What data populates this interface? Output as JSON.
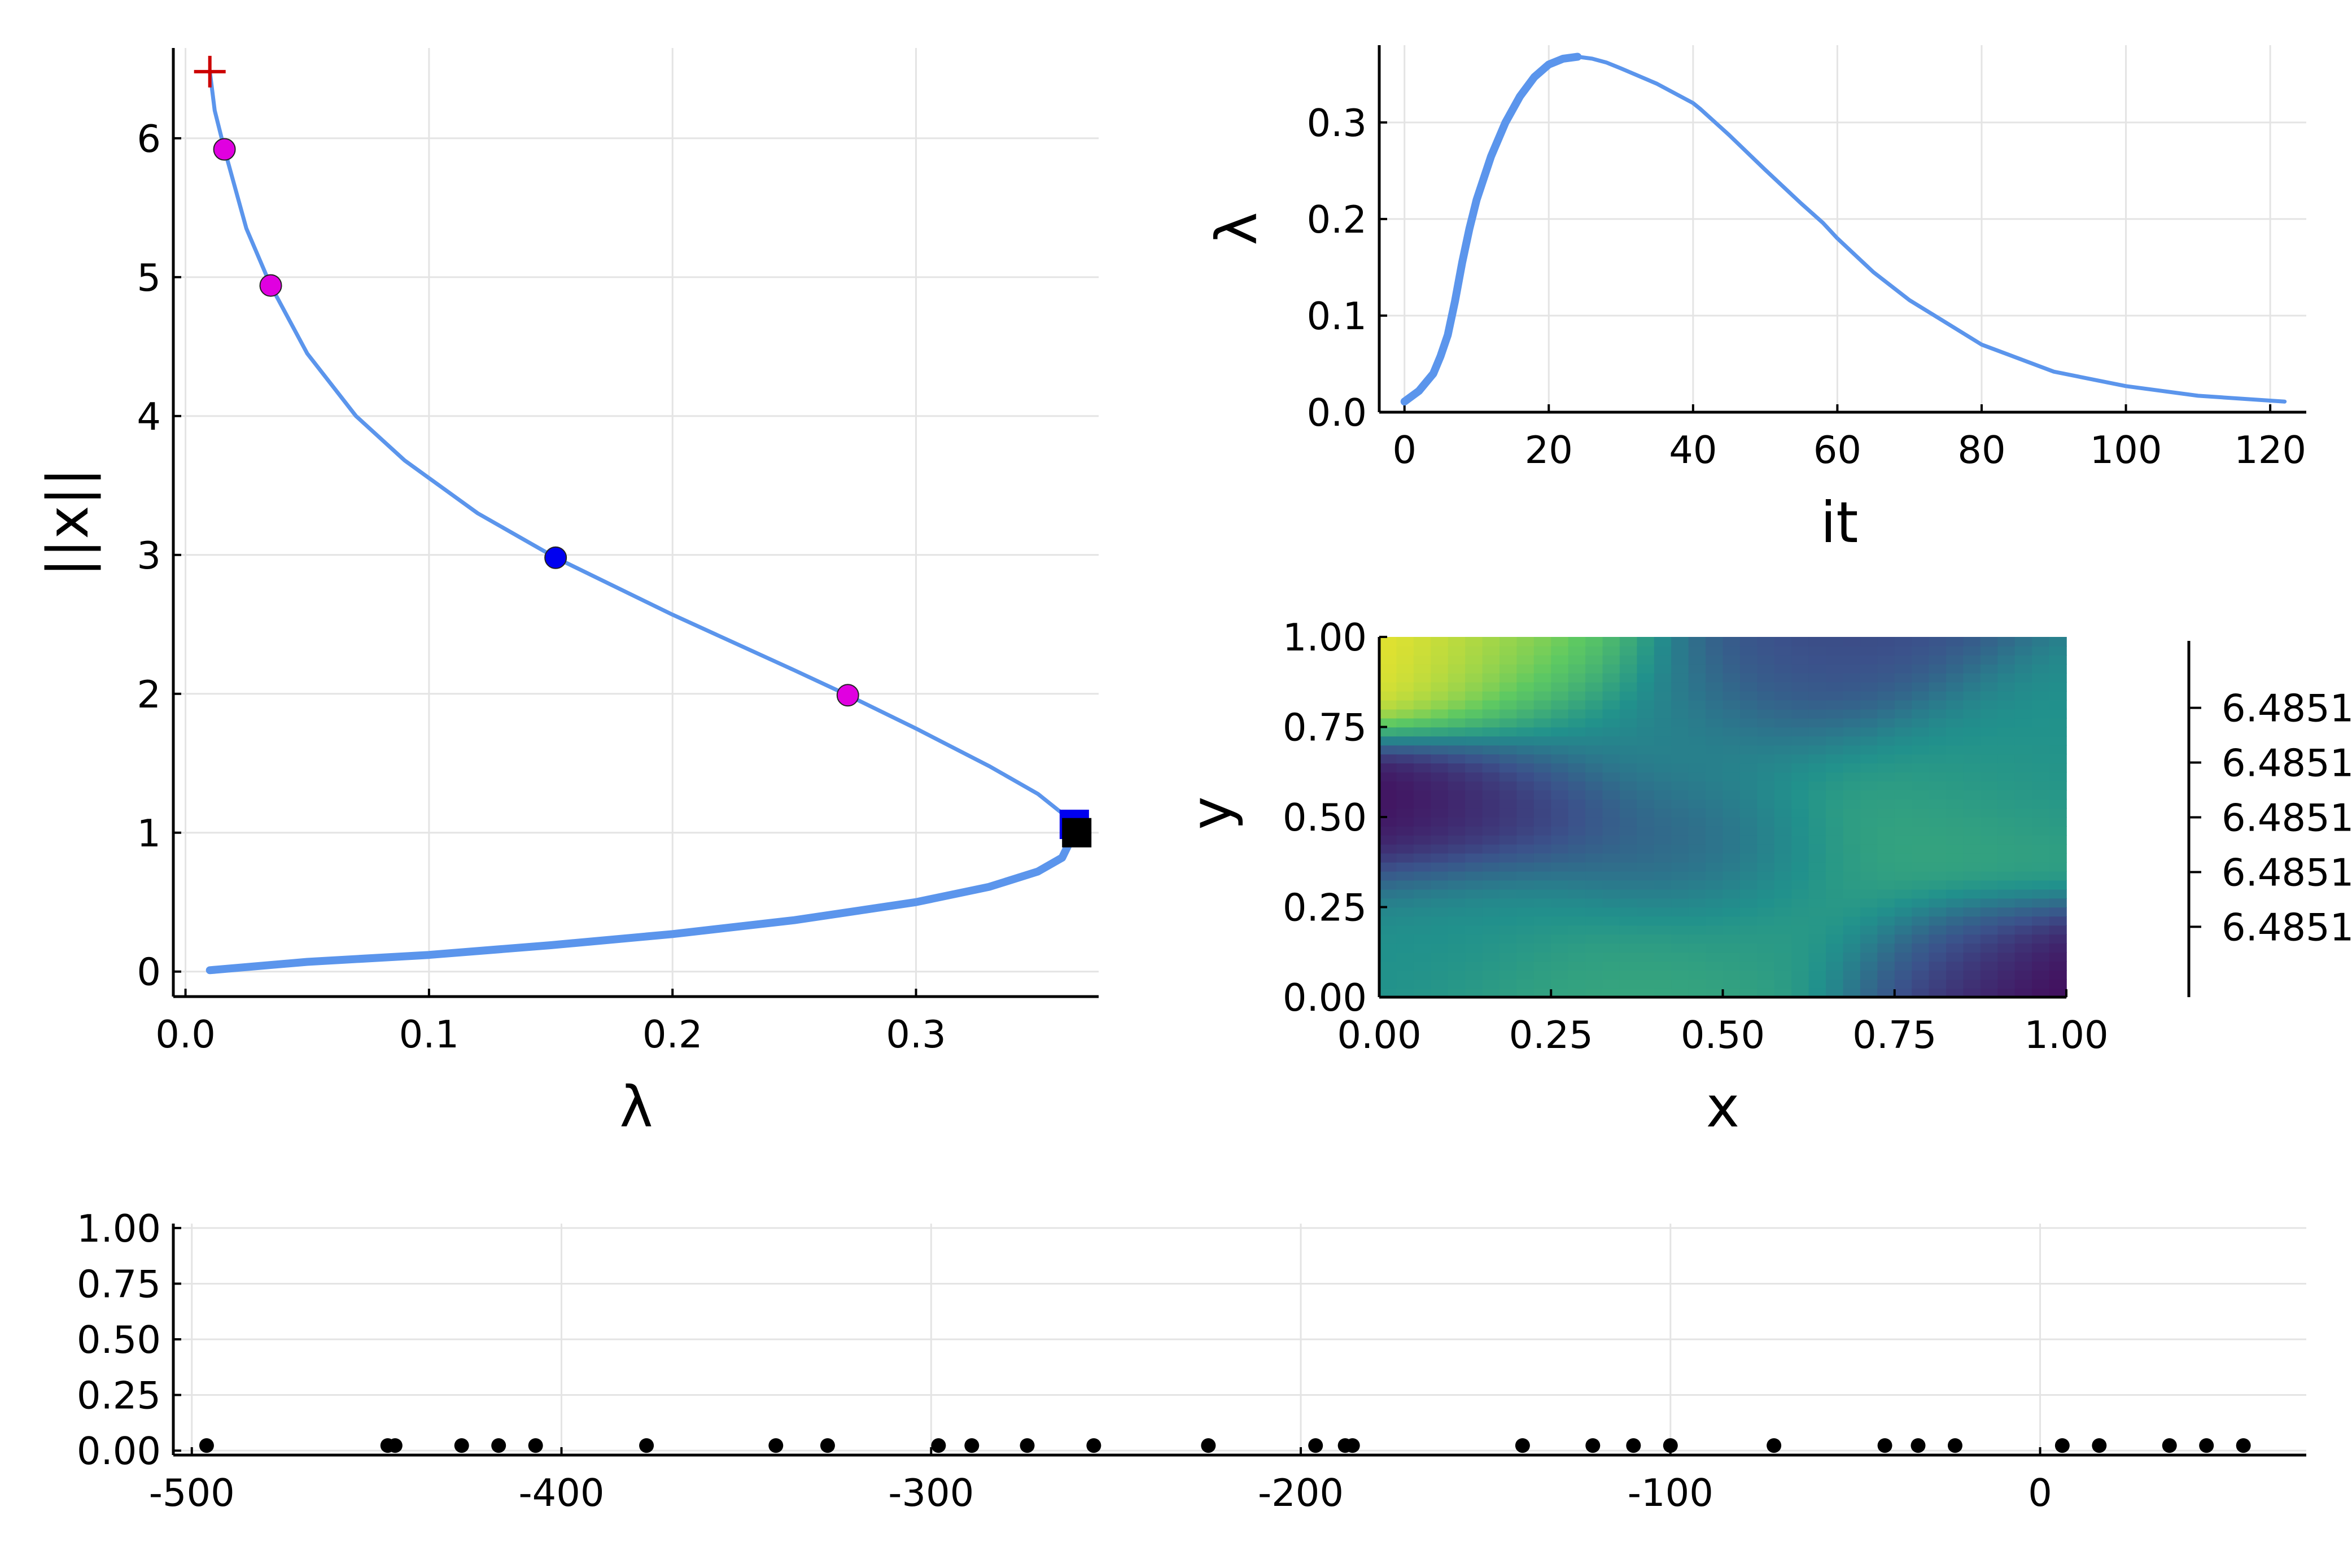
{
  "chart_data": [
    {
      "id": "branch",
      "type": "line",
      "xlabel": "λ",
      "ylabel": "||x||",
      "xlim": [
        -0.005,
        0.375
      ],
      "ylim": [
        -0.18,
        6.65
      ],
      "xticks": [
        0.0,
        0.1,
        0.2,
        0.3
      ],
      "xtick_labels": [
        "0.0",
        "0.1",
        "0.2",
        "0.3"
      ],
      "yticks": [
        0,
        1,
        2,
        3,
        4,
        5,
        6
      ],
      "ytick_labels": [
        "0",
        "1",
        "2",
        "3",
        "4",
        "5",
        "6"
      ],
      "grid": true,
      "colors": {
        "curve": "#5b95ec",
        "magenta": "#e000e0",
        "blue": "#0000f0",
        "black": "#000000",
        "red": "#cc0000"
      },
      "series": [
        {
          "style": "thick",
          "x": [
            0.01,
            0.05,
            0.1,
            0.15,
            0.2,
            0.25,
            0.3,
            0.33,
            0.35,
            0.36,
            0.365
          ],
          "y": [
            0.01,
            0.07,
            0.12,
            0.19,
            0.27,
            0.37,
            0.5,
            0.61,
            0.72,
            0.82,
            1.0
          ]
        },
        {
          "style": "thin",
          "x": [
            0.365,
            0.36,
            0.35,
            0.33,
            0.3,
            0.272,
            0.25,
            0.2,
            0.152,
            0.12,
            0.09,
            0.07,
            0.05,
            0.035,
            0.025,
            0.016,
            0.012,
            0.01
          ],
          "y": [
            1.0,
            1.14,
            1.28,
            1.48,
            1.75,
            1.99,
            2.17,
            2.57,
            2.98,
            3.3,
            3.68,
            4.0,
            4.45,
            4.94,
            5.35,
            5.92,
            6.2,
            6.48
          ]
        }
      ],
      "markers": [
        {
          "shape": "plus",
          "color": "red",
          "x": 0.01,
          "y": 6.48
        },
        {
          "shape": "circle",
          "color": "magenta",
          "x": 0.016,
          "y": 5.92
        },
        {
          "shape": "circle",
          "color": "magenta",
          "x": 0.035,
          "y": 4.94
        },
        {
          "shape": "circle",
          "color": "blue",
          "x": 0.152,
          "y": 2.98
        },
        {
          "shape": "circle",
          "color": "magenta",
          "x": 0.272,
          "y": 1.99
        },
        {
          "shape": "square",
          "color": "blue",
          "x": 0.365,
          "y": 1.06
        },
        {
          "shape": "square",
          "color": "black",
          "x": 0.366,
          "y": 1.0
        }
      ]
    },
    {
      "id": "lambda",
      "type": "line",
      "xlabel": "it",
      "ylabel": "λ",
      "xlim": [
        -3.5,
        125
      ],
      "ylim": [
        0.0,
        0.38
      ],
      "xticks": [
        0,
        20,
        40,
        60,
        80,
        100,
        120
      ],
      "xtick_labels": [
        "0",
        "20",
        "40",
        "60",
        "80",
        "100",
        "120"
      ],
      "yticks": [
        0.0,
        0.1,
        0.2,
        0.3
      ],
      "ytick_labels": [
        "0.0",
        "0.1",
        "0.2",
        "0.3"
      ],
      "grid": true,
      "colors": {
        "curve": "#5b95ec"
      },
      "series": [
        {
          "style": "thick",
          "x": [
            0,
            2,
            4,
            5,
            6,
            7,
            8,
            9,
            10,
            12,
            14,
            16,
            18,
            20,
            22,
            24
          ],
          "y": [
            0.011,
            0.022,
            0.04,
            0.058,
            0.08,
            0.115,
            0.155,
            0.19,
            0.22,
            0.265,
            0.3,
            0.327,
            0.347,
            0.36,
            0.366,
            0.368
          ]
        },
        {
          "style": "thin",
          "x": [
            24,
            26,
            28,
            30,
            35,
            40,
            41,
            45,
            50,
            55,
            58,
            60,
            65,
            70,
            80,
            90,
            100,
            110,
            122
          ],
          "y": [
            0.368,
            0.366,
            0.362,
            0.356,
            0.34,
            0.32,
            0.314,
            0.287,
            0.251,
            0.216,
            0.196,
            0.18,
            0.145,
            0.116,
            0.07,
            0.042,
            0.027,
            0.017,
            0.011
          ]
        }
      ]
    },
    {
      "id": "heatmap",
      "type": "heatmap",
      "xlabel": "x",
      "ylabel": "y",
      "xlim": [
        0.0,
        1.0
      ],
      "ylim": [
        0.0,
        1.0
      ],
      "xticks": [
        0.0,
        0.25,
        0.5,
        0.75,
        1.0
      ],
      "xtick_labels": [
        "0.00",
        "0.25",
        "0.50",
        "0.75",
        "1.00"
      ],
      "yticks": [
        0.0,
        0.25,
        0.5,
        0.75,
        1.0
      ],
      "ytick_labels": [
        "0.00",
        "0.25",
        "0.50",
        "0.75",
        "1.00"
      ],
      "colorbar_ticks": [
        6.48508,
        6.48509,
        6.4851,
        6.48511,
        6.48512
      ],
      "colorbar_tick_labels": [
        "6.4851",
        "6.4851",
        "6.4851",
        "6.4851",
        "6.4851"
      ],
      "colormap_stops": [
        "#440154",
        "#3b528b",
        "#21918c",
        "#5ec962",
        "#fde725"
      ],
      "value_range": [
        0,
        1
      ],
      "grid": false,
      "features": [
        {
          "x": 0.03,
          "y": 0.97,
          "v": 1.0,
          "s": 0.12
        },
        {
          "x": 0.2,
          "y": 0.95,
          "v": 0.8,
          "s": 0.12
        },
        {
          "x": 0.04,
          "y": 0.5,
          "v": 0.02,
          "s": 0.11
        },
        {
          "x": 0.2,
          "y": 0.52,
          "v": 0.15,
          "s": 0.1
        },
        {
          "x": 0.15,
          "y": 0.22,
          "v": 0.5,
          "s": 0.14
        },
        {
          "x": 0.35,
          "y": 0.05,
          "v": 0.6,
          "s": 0.12
        },
        {
          "x": 0.45,
          "y": 0.4,
          "v": 0.28,
          "s": 0.12
        },
        {
          "x": 0.62,
          "y": 0.92,
          "v": 0.22,
          "s": 0.13
        },
        {
          "x": 0.75,
          "y": 0.45,
          "v": 0.6,
          "s": 0.16
        },
        {
          "x": 0.55,
          "y": 0.2,
          "v": 0.55,
          "s": 0.13
        },
        {
          "x": 0.92,
          "y": 0.65,
          "v": 0.5,
          "s": 0.14
        },
        {
          "x": 0.97,
          "y": 0.04,
          "v": 0.0,
          "s": 0.1
        },
        {
          "x": 0.85,
          "y": 0.1,
          "v": 0.22,
          "s": 0.1
        },
        {
          "x": 0.4,
          "y": 0.72,
          "v": 0.45,
          "s": 0.15
        }
      ]
    },
    {
      "id": "eigenvalues",
      "type": "scatter",
      "xlim": [
        -505,
        72
      ],
      "ylim": [
        -0.02,
        1.02
      ],
      "xticks": [
        -500,
        -400,
        -300,
        -200,
        -100,
        0
      ],
      "xtick_labels": [
        "-500",
        "-400",
        "-300",
        "-200",
        "-100",
        "0"
      ],
      "yticks": [
        0.0,
        0.25,
        0.5,
        0.75,
        1.0
      ],
      "ytick_labels": [
        "0.00",
        "0.25",
        "0.50",
        "0.75",
        "1.00"
      ],
      "grid": true,
      "colors": {
        "point": "#000000"
      },
      "x": [
        -496,
        -447,
        -445,
        -427,
        -417,
        -407,
        -377,
        -342,
        -328,
        -298,
        -289,
        -274,
        -256,
        -225,
        -196,
        -188,
        -186,
        -140,
        -121,
        -110,
        -100,
        -72,
        -42,
        -33,
        -23,
        6,
        16,
        35,
        45,
        55
      ],
      "y": [
        0,
        0,
        0,
        0,
        0,
        0,
        0,
        0,
        0,
        0,
        0,
        0,
        0,
        0,
        0,
        0,
        0,
        0,
        0,
        0,
        0,
        0,
        0,
        0,
        0,
        0,
        0,
        0,
        0,
        0
      ]
    }
  ]
}
